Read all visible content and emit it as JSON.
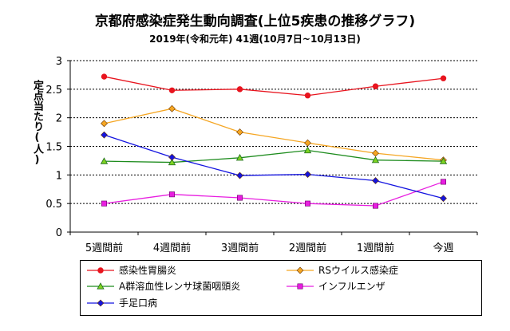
{
  "title": "京都府感染症発生動向調査(上位5疾患の推移グラフ)",
  "subtitle": "2019年(令和元年) 41週(10月7日~10月13日)",
  "chart_data": {
    "type": "line",
    "ylabel": "定点当たり(人)",
    "xlabel": "",
    "ylim": [
      0,
      3
    ],
    "yticks": [
      "0",
      "0.5",
      "1",
      "1.5",
      "2",
      "2.5",
      "3"
    ],
    "ytick_values": [
      0,
      0.5,
      1,
      1.5,
      2,
      2.5,
      3
    ],
    "categories": [
      "5週間前",
      "4週間前",
      "3週間前",
      "2週間前",
      "1週間前",
      "今週"
    ],
    "grid": "horizontal-dashed",
    "legend_position": "bottom",
    "series": [
      {
        "name": "感染性胃腸炎",
        "color": "#e8141e",
        "marker": "circle",
        "values": [
          2.72,
          2.48,
          2.5,
          2.39,
          2.55,
          2.69
        ]
      },
      {
        "name": "RSウイルス感染症",
        "color": "#f5a623",
        "marker": "diamond",
        "values": [
          1.9,
          2.16,
          1.75,
          1.56,
          1.38,
          1.26
        ]
      },
      {
        "name": "A群溶血性レンサ球菌咽頭炎",
        "color": "#1e8c1e",
        "marker": "triangle",
        "values": [
          1.24,
          1.22,
          1.3,
          1.43,
          1.26,
          1.24
        ]
      },
      {
        "name": "インフルエンザ",
        "color": "#e81ee0",
        "marker": "square",
        "values": [
          0.5,
          0.66,
          0.6,
          0.5,
          0.46,
          0.88
        ]
      },
      {
        "name": "手足口病",
        "color": "#1414e0",
        "marker": "diamond",
        "values": [
          1.7,
          1.31,
          0.99,
          1.01,
          0.9,
          0.59
        ]
      }
    ]
  }
}
